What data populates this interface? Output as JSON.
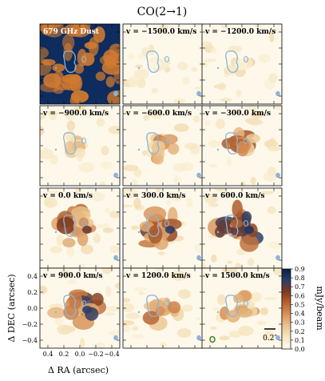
{
  "chart_data": {
    "type": "heatmap",
    "title": "CO(2→1)",
    "layout": "4x3 grid of channel maps",
    "panels": [
      {
        "label": "679 GHz Dust",
        "kind": "dust"
      },
      {
        "label": "v = −1500.0 km/s",
        "velocity": -1500.0,
        "peak": 0.15
      },
      {
        "label": "v = −1200.0 km/s",
        "velocity": -1200.0,
        "peak": 0.25
      },
      {
        "label": "v = −900.0 km/s",
        "velocity": -900.0,
        "peak": 0.35
      },
      {
        "label": "v = −600.0 km/s",
        "velocity": -600.0,
        "peak": 0.5
      },
      {
        "label": "v = −300.0 km/s",
        "velocity": -300.0,
        "peak": 0.65
      },
      {
        "label": "v = 0.0 km/s",
        "velocity": 0.0,
        "peak": 0.75
      },
      {
        "label": "v = 300.0 km/s",
        "velocity": 300.0,
        "peak": 0.85
      },
      {
        "label": "v = 600.0 km/s",
        "velocity": 600.0,
        "peak": 0.9
      },
      {
        "label": "v = 900.0 km/s",
        "velocity": 900.0,
        "peak": 0.85
      },
      {
        "label": "v = 1200.0 km/s",
        "velocity": 1200.0,
        "peak": 0.6
      },
      {
        "label": "v = 1500.0 km/s",
        "velocity": 1500.0,
        "peak": 0.45
      }
    ],
    "xlabel": "Δ RA (arcsec)",
    "ylabel": "Δ DEC (arcsec)",
    "xticks": [
      "0.4",
      "0.2",
      "0.0",
      "−0.2",
      "−0.4"
    ],
    "yticks": [
      "0.4",
      "0.2",
      "0.0",
      "−0.2",
      "−0.4"
    ],
    "xlim": [
      0.5,
      -0.5
    ],
    "ylim": [
      -0.5,
      0.5
    ],
    "colorbar": {
      "label": "mJy/beam",
      "ticks": [
        "0.0",
        "0.1",
        "0.2",
        "0.3",
        "0.4",
        "0.5",
        "0.6",
        "0.7",
        "0.8",
        "0.9"
      ],
      "range": [
        0.0,
        0.9
      ],
      "colormap": [
        "#fffbf0",
        "#f6e8c4",
        "#ebc58f",
        "#d9935a",
        "#b86432",
        "#7f3a1c",
        "#2c3e6a",
        "#0b1f45"
      ]
    },
    "scale_bar": "0.2″",
    "contour_color": "#8ab4d8",
    "dust_colors": [
      "#0e2c5e",
      "#d07a30"
    ]
  }
}
